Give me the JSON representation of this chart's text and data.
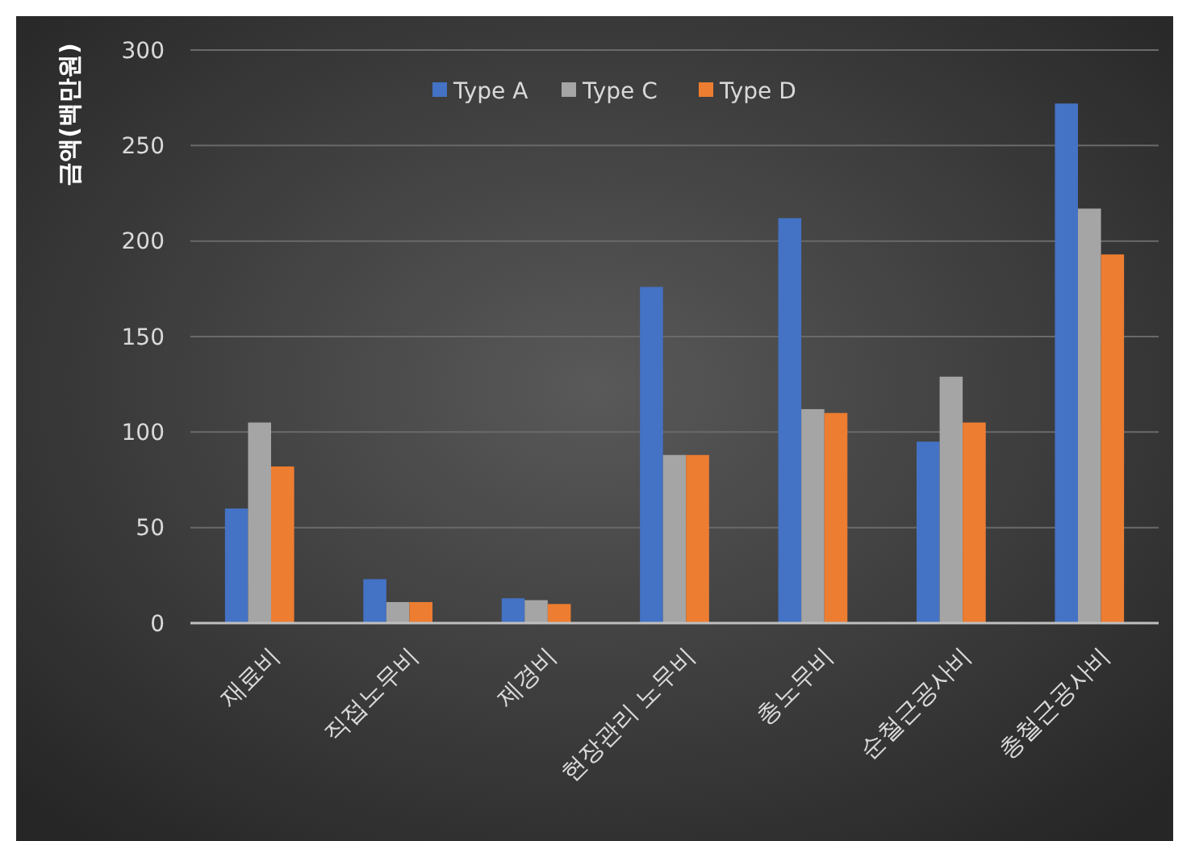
{
  "chart_data": {
    "type": "bar",
    "ylabel": "금액(백만원)",
    "categories": [
      "재료비",
      "직접노무비",
      "제경비",
      "현장관리 노무비",
      "총노무비",
      "순철근공사비",
      "총철근공사비"
    ],
    "series": [
      {
        "name": "Type A",
        "color": "#4472c4",
        "values": [
          60,
          23,
          13,
          176,
          212,
          95,
          272
        ]
      },
      {
        "name": "Type C",
        "color": "#a5a5a5",
        "values": [
          105,
          11,
          12,
          88,
          112,
          129,
          217
        ]
      },
      {
        "name": "Type D",
        "color": "#ed7d31",
        "values": [
          82,
          11,
          10,
          88,
          110,
          105,
          193
        ]
      }
    ],
    "ylim": [
      0,
      300
    ],
    "yticks": [
      0,
      50,
      100,
      150,
      200,
      250,
      300
    ],
    "grid": "y",
    "legend": "top"
  }
}
